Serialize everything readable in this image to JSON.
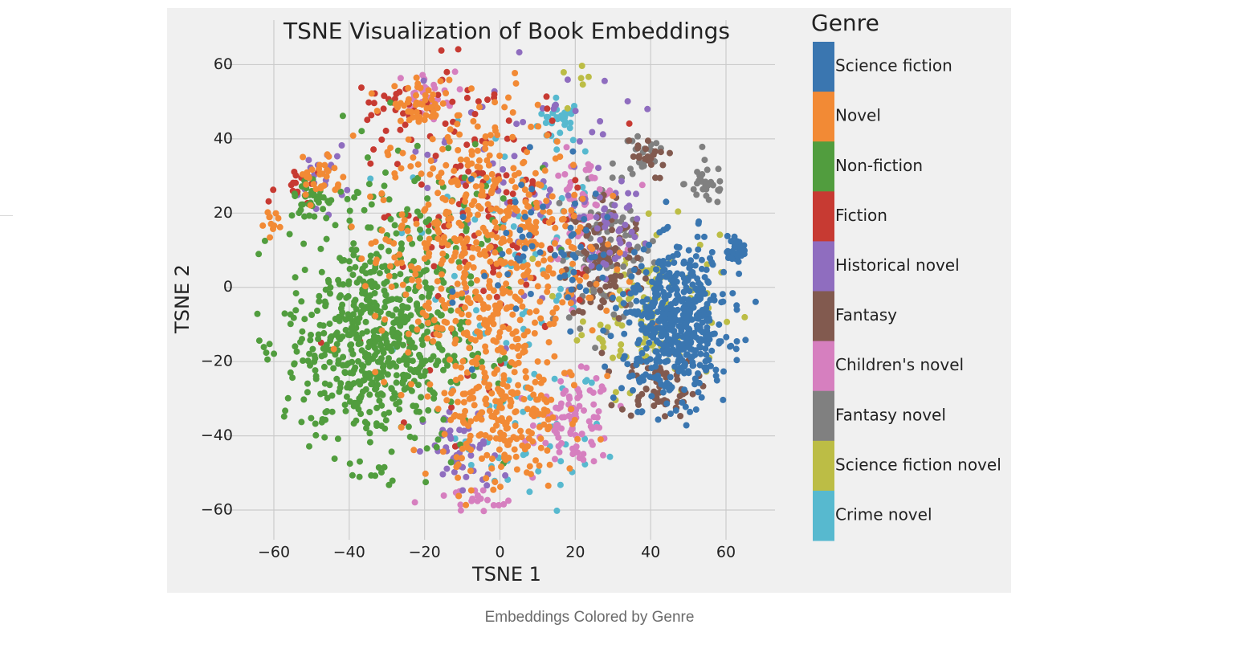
{
  "caption": "Embeddings Colored by Genre",
  "chart_data": {
    "type": "scatter",
    "title": "TSNE Visualization of Book Embeddings",
    "xlabel": "TSNE 1",
    "ylabel": "TSNE 2",
    "xlim": [
      -73,
      73
    ],
    "ylim": [
      -68,
      72
    ],
    "x_ticks": [
      -60,
      -40,
      -20,
      0,
      20,
      40,
      60
    ],
    "y_ticks": [
      -60,
      -40,
      -20,
      0,
      20,
      40,
      60
    ],
    "x_tick_labels": [
      "−60",
      "−40",
      "−20",
      "0",
      "20",
      "40",
      "60"
    ],
    "y_tick_labels": [
      "−60",
      "−40",
      "−20",
      "0",
      "20",
      "40",
      "60"
    ],
    "grid": true,
    "legend_title": "Genre",
    "legend_placement": "right",
    "series": [
      {
        "name": "Crime novel",
        "color": "#57b9cf",
        "clusters": [
          {
            "cx": 16,
            "cy": 45,
            "sx": 3,
            "sy": 3,
            "n": 30
          },
          {
            "cx": 8,
            "cy": -40,
            "sx": 10,
            "sy": 10,
            "n": 50
          },
          {
            "cx": 0,
            "cy": 10,
            "sx": 15,
            "sy": 18,
            "n": 60
          }
        ]
      },
      {
        "name": "Science fiction novel",
        "color": "#bcbd45",
        "clusters": [
          {
            "cx": 40,
            "cy": -5,
            "sx": 9,
            "sy": 11,
            "n": 120
          },
          {
            "cx": 20,
            "cy": 55,
            "sx": 2,
            "sy": 2,
            "n": 6
          }
        ]
      },
      {
        "name": "Fantasy novel",
        "color": "#808080",
        "clusters": [
          {
            "cx": 28,
            "cy": 10,
            "sx": 7,
            "sy": 10,
            "n": 90
          },
          {
            "cx": 55,
            "cy": 28,
            "sx": 3,
            "sy": 3,
            "n": 30
          },
          {
            "cx": 38,
            "cy": 35,
            "sx": 3,
            "sy": 3,
            "n": 20
          }
        ]
      },
      {
        "name": "Children's novel",
        "color": "#d67fbf",
        "clusters": [
          {
            "cx": 20,
            "cy": -36,
            "sx": 5,
            "sy": 6,
            "n": 90
          },
          {
            "cx": 22,
            "cy": 22,
            "sx": 5,
            "sy": 7,
            "n": 50
          },
          {
            "cx": -20,
            "cy": 52,
            "sx": 4,
            "sy": 3,
            "n": 30
          },
          {
            "cx": -8,
            "cy": -58,
            "sx": 7,
            "sy": 2,
            "n": 20
          }
        ]
      },
      {
        "name": "Fantasy",
        "color": "#825a4f",
        "clusters": [
          {
            "cx": 28,
            "cy": 8,
            "sx": 5,
            "sy": 9,
            "n": 110
          },
          {
            "cx": 42,
            "cy": -27,
            "sx": 5,
            "sy": 4,
            "n": 60
          },
          {
            "cx": 38,
            "cy": 35,
            "sx": 3,
            "sy": 3,
            "n": 20
          }
        ]
      },
      {
        "name": "Historical novel",
        "color": "#8f6dbf",
        "clusters": [
          {
            "cx": 8,
            "cy": 28,
            "sx": 14,
            "sy": 20,
            "n": 80
          },
          {
            "cx": -10,
            "cy": -45,
            "sx": 5,
            "sy": 6,
            "n": 50
          },
          {
            "cx": -47,
            "cy": 30,
            "sx": 3,
            "sy": 4,
            "n": 20
          },
          {
            "cx": 30,
            "cy": 17,
            "sx": 4,
            "sy": 5,
            "n": 35
          }
        ]
      },
      {
        "name": "Fiction",
        "color": "#c73a32",
        "clusters": [
          {
            "cx": -5,
            "cy": 20,
            "sx": 15,
            "sy": 20,
            "n": 150
          },
          {
            "cx": -28,
            "cy": 48,
            "sx": 5,
            "sy": 5,
            "n": 25
          },
          {
            "cx": -53,
            "cy": 27,
            "sx": 3,
            "sy": 3,
            "n": 12
          }
        ]
      },
      {
        "name": "Non-fiction",
        "color": "#519d3e",
        "clusters": [
          {
            "cx": -33,
            "cy": -15,
            "sx": 12,
            "sy": 15,
            "n": 650
          },
          {
            "cx": -50,
            "cy": 24,
            "sx": 3,
            "sy": 3,
            "n": 35
          },
          {
            "cx": -22,
            "cy": 20,
            "sx": 14,
            "sy": 12,
            "n": 80
          }
        ]
      },
      {
        "name": "Novel",
        "color": "#f28a35",
        "clusters": [
          {
            "cx": -5,
            "cy": 10,
            "sx": 14,
            "sy": 20,
            "n": 550
          },
          {
            "cx": -20,
            "cy": 50,
            "sx": 4,
            "sy": 3,
            "n": 40
          },
          {
            "cx": -48,
            "cy": 30,
            "sx": 3,
            "sy": 4,
            "n": 30
          },
          {
            "cx": -62,
            "cy": 18,
            "sx": 1.5,
            "sy": 1.5,
            "n": 12
          },
          {
            "cx": 0,
            "cy": -35,
            "sx": 8,
            "sy": 10,
            "n": 200
          }
        ]
      },
      {
        "name": "Science fiction",
        "color": "#3a76b0",
        "clusters": [
          {
            "cx": 47,
            "cy": -10,
            "sx": 7,
            "sy": 10,
            "n": 520
          },
          {
            "cx": 63,
            "cy": 10,
            "sx": 1.5,
            "sy": 2,
            "n": 30
          },
          {
            "cx": 15,
            "cy": 10,
            "sx": 10,
            "sy": 12,
            "n": 60
          }
        ]
      }
    ]
  }
}
